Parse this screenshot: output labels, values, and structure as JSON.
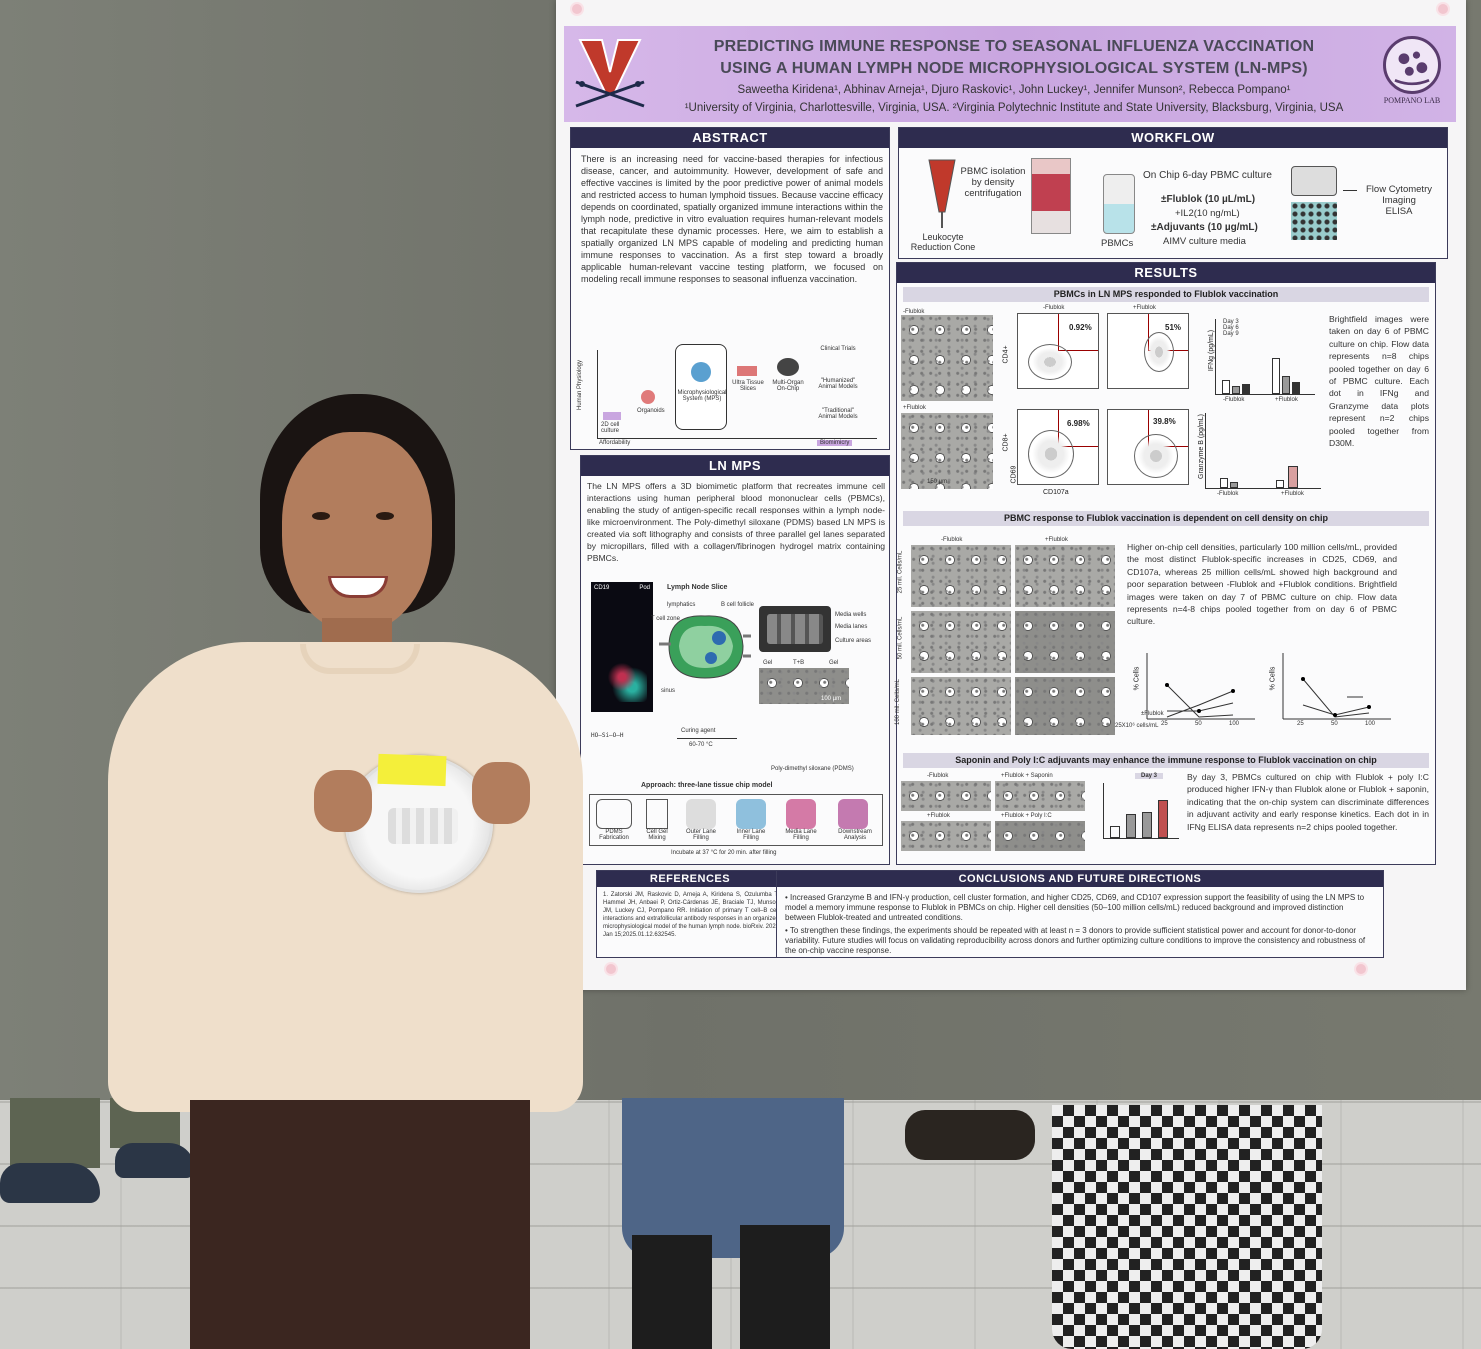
{
  "poster": {
    "title_line1": "PREDICTING IMMUNE RESPONSE TO SEASONAL INFLUENZA VACCINATION",
    "title_line2": "USING A HUMAN LYMPH NODE MICROPHYSIOLOGICAL SYSTEM (LN-MPS)",
    "authors": "Saweetha Kiridena¹, Abhinav Arneja¹, Djuro Raskovic¹, John Luckey¹, Jennifer Munson², Rebecca Pompano¹",
    "affiliations": "¹University of Virginia, Charlottesville, Virginia, USA. ²Virginia Polytechnic Institute and State University, Blacksburg, Virginia, USA",
    "lab_name": "POMPANO LAB",
    "abstract": {
      "heading": "ABSTRACT",
      "text": "There is an increasing need for vaccine-based therapies for infectious disease, cancer, and autoimmunity. However, development of safe and effective vaccines is limited by the poor predictive power of animal models and restricted access to human lymphoid tissues. Because vaccine efficacy depends on coordinated, spatially organized immune interactions within the lymph node, predictive in vitro evaluation requires human-relevant models that recapitulate these dynamic processes. Here, we aim to establish a spatially organized LN MPS capable of modeling and predicting human immune responses to vaccination. As a first step toward a broadly applicable human-relevant vaccine testing platform, we focused on modeling recall immune responses to seasonal influenza vaccination.",
      "fig_y_label": "Human Physiology",
      "fig_x_left": "Affordability",
      "fig_x_right": "Biomimicry",
      "fig_items": [
        "2D cell culture",
        "Organoids",
        "Microphysiological System (MPS)",
        "Ultra Tissue Slices",
        "Multi-Organ On-Chip",
        "Clinical Trials",
        "\"Humanized\" Animal Models",
        "\"Traditional\" Animal Models"
      ]
    },
    "lnmps": {
      "heading": "LN MPS",
      "text": "The LN MPS offers a 3D biomimetic platform that recreates immune cell interactions using human peripheral blood mononuclear cells (PBMCs), enabling the study of antigen-specific recall responses within a lymph node-like microenvironment. The Poly-dimethyl siloxane (PDMS) based LN MPS is created via soft lithography and consists of three parallel gel lanes separated by micropillars, filled with a collagen/fibrinogen hydrogel matrix containing PBMCs.",
      "slice_title": "Lymph Node Slice",
      "slice_labels": [
        "lymphatics",
        "B cell follicle",
        "T cell zone",
        "sinus"
      ],
      "chip_labels": [
        "Media wells",
        "Media lanes",
        "Culture areas"
      ],
      "lane_labels": [
        "Gel",
        "T+B",
        "Gel"
      ],
      "scale_100": "100 µm",
      "curing_agent": "Curing agent",
      "curing_temp": "60-70 °C",
      "pdms_label": "Poly-dimethyl siloxane (PDMS)",
      "approach_title": "Approach: three-lane tissue chip model",
      "steps": [
        "PDMS Fabrication",
        "Cell Gel Mixing",
        "Outer Lane Filling",
        "Inner Lane Filling",
        "Media Lane Filling",
        "Downstream Analysis"
      ],
      "incubate": "Incubate at 37 °C for 20 min. after filling",
      "cd_labels": [
        "CD19",
        "Pod"
      ]
    },
    "workflow": {
      "heading": "WORKFLOW",
      "cone_label": "Leukocyte Reduction Cone",
      "pbmc_iso": "PBMC isolation by density centrifugation",
      "pbmcs": "PBMCs",
      "culture": "On Chip 6-day PBMC culture",
      "flublok": "±Flublok (10 µL/mL)",
      "il2": "+IL2(10 ng/mL)",
      "adjuvants": "±Adjuvants (10 µg/mL)",
      "media": "AIMV culture media",
      "readouts": [
        "Flow Cytometry",
        "Imaging",
        "ELISA"
      ]
    },
    "results": {
      "heading": "RESULTS",
      "sub1": "PBMCs in LN MPS responded to Flublok vaccination",
      "sub1_labels": [
        "-Flublok",
        "+Flublok"
      ],
      "flow_pcts": [
        "0.92%",
        "51%",
        "6.98%",
        "39.8%"
      ],
      "flow_axes": [
        "CD4+",
        "CD8+",
        "CD69",
        "CD107a"
      ],
      "scale_150": "150 µm",
      "legend_days": [
        "Day 3",
        "Day 6",
        "Day 9"
      ],
      "y_ifng": "IFNg (pg/mL)",
      "y_gzmb": "Granzyme B (pg/mL)",
      "sub1_text": "Brightfield images were taken on day 6 of PBMC culture on chip. Flow data represents n=8 chips pooled together on day 6 of PBMC culture. Each dot in IFNg and Granzyme data plots represent n=2 chips pooled together from D30M.",
      "sub2": "PBMC response to Flublok vaccination is dependent on cell density on chip",
      "densities": [
        "25 mil. Cells/mL",
        "50 mil. Cells/mL",
        "100 mil. Cells/mL"
      ],
      "sub2_text": "Higher on-chip cell densities, particularly 100 million cells/mL, provided the most distinct Flublok-specific increases in CD25, CD69, and CD107a, whereas 25 million cells/mL showed high background and poor separation between -Flublok and +Flublok conditions. Brightfield images were taken on day 7 of PBMC culture on chip. Flow data represents n=4-8 chips pooled together from on day 6 of PBMC culture.",
      "x_unit": "25X10⁶ cells/mL",
      "x_flublok": "±Flublok",
      "x_ticks": [
        "25",
        "50",
        "100"
      ],
      "y_cells": "% Cells",
      "sub3": "Saponin and Poly I:C adjuvants may enhance the immune response to Flublok vaccination on chip",
      "sub3_labels": [
        "-Flublok",
        "+Flublok + Saponin",
        "+Flublok",
        "+Flublok + Poly I:C"
      ],
      "day3": "Day 3",
      "sub3_text": "By day 3, PBMCs cultured on chip with Flublok + poly I:C produced higher IFN-γ than Flublok alone or Flublok + saponin, indicating that the on-chip system can discriminate differences in adjuvant activity and early response kinetics. Each dot in in IFNg ELISA data represents n=2 chips pooled together."
    },
    "references": {
      "heading": "REFERENCES",
      "text": "1. Zatorski JM, Raskovic D, Arneja A, Kiridena S, Ozulumba T, Hammel JH, Anbaei P, Ortiz-Cárdenas JE, Braciale TJ, Munson JM, Luckey CJ, Pompano RR. Initiation of primary T cell–B cell interactions and extrafollicular antibody responses in an organized microphysiological model of the human lymph node. bioRxiv. 2025 Jan 15;2025.01.12.632545."
    },
    "conclusions": {
      "heading": "CONCLUSIONS AND FUTURE DIRECTIONS",
      "bullet1": "Increased Granzyme B and IFN-γ production, cell cluster formation, and higher CD25, CD69, and CD107 expression support the feasibility of using the LN MPS to model a memory immune response to Flublok in PBMCs on chip. Higher cell densities (50–100 million cells/mL) reduced background and improved distinction between Flublok-treated and untreated conditions.",
      "bullet2": "To strengthen these findings, the experiments should be repeated with at least n = 3 donors to provide sufficient statistical power and account for donor-to-donor variability. Future studies will focus on validating reproducibility across donors and further optimizing culture conditions to improve the consistency and robustness of the on-chip vaccine response."
    }
  },
  "colors": {
    "header_purple": "#c9a6e0",
    "section_navy": "#2e2c4f",
    "board_gray": "#75776e"
  }
}
